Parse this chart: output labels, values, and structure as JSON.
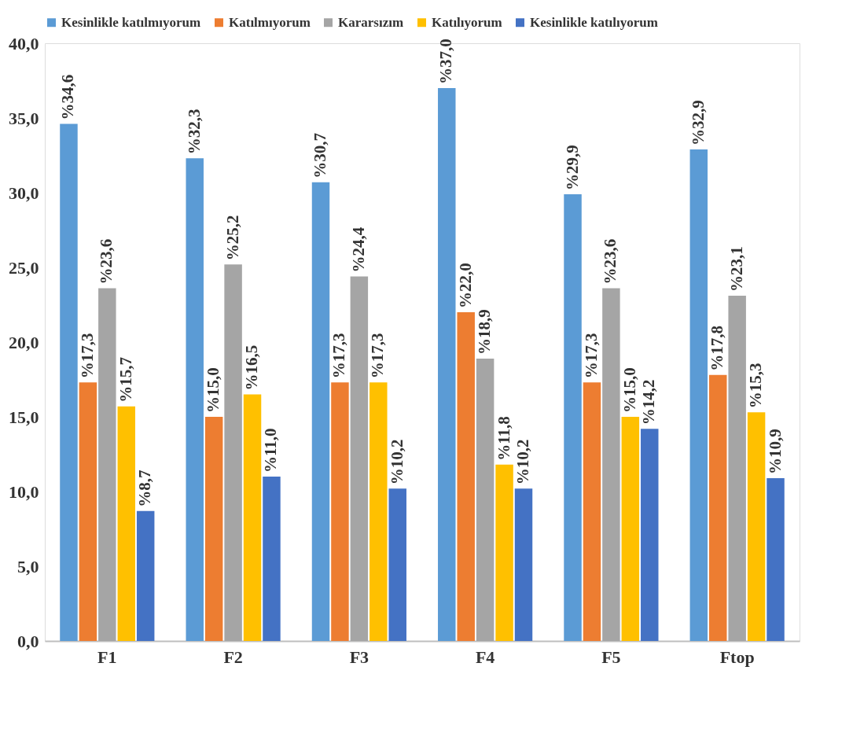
{
  "chart_data": {
    "type": "bar",
    "categories": [
      "F1",
      "F2",
      "F3",
      "F4",
      "F5",
      "Ftop"
    ],
    "series": [
      {
        "name": "Kesinlikle katılmıyorum",
        "color": "#5b9bd5",
        "values": [
          34.6,
          32.3,
          30.7,
          37.0,
          29.9,
          32.9
        ],
        "value_labels": [
          "%34,6",
          "%32,3",
          "%30,7",
          "%37,0",
          "%29,9",
          "%32,9"
        ]
      },
      {
        "name": "Katılmıyorum",
        "color": "#ed7d31",
        "values": [
          17.3,
          15.0,
          17.3,
          22.0,
          17.3,
          17.8
        ],
        "value_labels": [
          "%17,3",
          "%15,0",
          "%17,3",
          "%22,0",
          "%17,3",
          "%17,8"
        ]
      },
      {
        "name": "Kararsızım",
        "color": "#a5a5a5",
        "values": [
          23.6,
          25.2,
          24.4,
          18.9,
          23.6,
          23.1
        ],
        "value_labels": [
          "%23,6",
          "%25,2",
          "%24,4",
          "%18,9",
          "%23,6",
          "%23,1"
        ]
      },
      {
        "name": "Katılıyorum",
        "color": "#ffc000",
        "values": [
          15.7,
          16.5,
          17.3,
          11.8,
          15.0,
          15.3
        ],
        "value_labels": [
          "%15,7",
          "%16,5",
          "%17,3",
          "%11,8",
          "%15,0",
          "%15,3"
        ]
      },
      {
        "name": "Kesinlikle katılıyorum",
        "color": "#4472c4",
        "values": [
          8.7,
          11.0,
          10.2,
          10.2,
          14.2,
          10.9
        ],
        "value_labels": [
          "%8,7",
          "%11,0",
          "%10,2",
          "%10,2",
          "%14,2",
          "%10,9"
        ]
      }
    ],
    "ylim": [
      0,
      40
    ],
    "yticks": [
      {
        "value": 0,
        "label": "0,0"
      },
      {
        "value": 5,
        "label": "5,0"
      },
      {
        "value": 10,
        "label": "10,0"
      },
      {
        "value": 15,
        "label": "15,0"
      },
      {
        "value": 20,
        "label": "20,0"
      },
      {
        "value": 25,
        "label": "25,0"
      },
      {
        "value": 30,
        "label": "30,0"
      },
      {
        "value": 35,
        "label": "35,0"
      },
      {
        "value": 40,
        "label": "40,0"
      }
    ],
    "grid": false,
    "legend": "top"
  }
}
